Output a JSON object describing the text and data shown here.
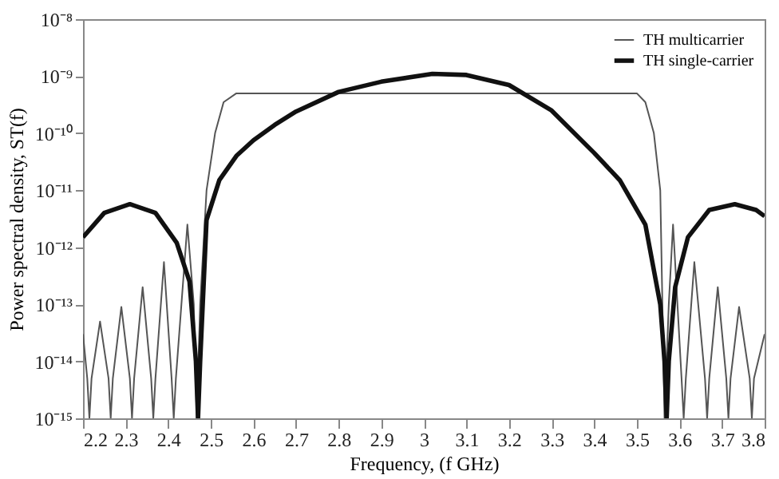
{
  "chart_data": {
    "type": "line",
    "xlabel": "Frequency, (f GHz)",
    "ylabel": "Power spectral density, ST(f)",
    "log": "y",
    "grid": false,
    "legend": "top right",
    "marker": "none",
    "line_style": "solid",
    "xlim": [
      2.2,
      3.8
    ],
    "xticks": [
      2.2,
      2.3,
      2.4,
      2.5,
      2.6,
      2.7,
      2.8,
      2.9,
      {
        "value": 3.0,
        "label": "3"
      },
      3.1,
      3.2,
      3.3,
      3.4,
      3.5,
      3.6,
      3.7,
      3.8
    ],
    "ylim": [
      1e-15,
      1e-08
    ],
    "yticks": [
      {
        "value": 1e-15,
        "label": "10⁻¹⁵"
      },
      {
        "value": 1e-14,
        "label": "10⁻¹⁴"
      },
      {
        "value": 1e-13,
        "label": "10⁻¹³"
      },
      {
        "value": 1e-12,
        "label": "10⁻¹²"
      },
      {
        "value": 1e-11,
        "label": "10⁻¹¹"
      },
      {
        "value": 1e-10,
        "label": "10⁻¹⁰"
      },
      {
        "value": 1e-09,
        "label": "10⁻⁹"
      },
      {
        "value": 1e-08,
        "label": "10⁻⁸"
      }
    ],
    "series": [
      {
        "name": "TH multicarrier",
        "color": "#555555",
        "x": [
          2.2,
          2.21,
          2.215,
          2.22,
          2.24,
          2.26,
          2.265,
          2.27,
          2.29,
          2.31,
          2.315,
          2.32,
          2.34,
          2.36,
          2.365,
          2.37,
          2.39,
          2.408,
          2.413,
          2.418,
          2.445,
          2.46,
          2.467,
          2.475,
          2.49,
          2.51,
          2.53,
          2.56,
          3.5,
          3.52,
          3.54,
          3.555,
          3.565,
          3.575,
          3.585,
          3.605,
          3.61,
          3.615,
          3.635,
          3.66,
          3.665,
          3.67,
          3.69,
          3.71,
          3.715,
          3.72,
          3.74,
          3.765,
          3.77,
          3.775,
          3.8
        ],
        "values": [
          3e-14,
          5e-15,
          1e-15,
          5e-15,
          5e-14,
          5e-15,
          1e-15,
          5e-15,
          9e-14,
          5e-15,
          1e-15,
          5e-15,
          2e-13,
          5e-15,
          1e-15,
          5e-15,
          5.5e-13,
          5e-15,
          1e-15,
          5e-15,
          2.5e-12,
          1e-13,
          1e-15,
          1e-13,
          1e-11,
          1e-10,
          3.5e-10,
          5e-10,
          5e-10,
          3.5e-10,
          1e-10,
          1e-11,
          1e-15,
          1e-13,
          2.5e-12,
          5e-15,
          1e-15,
          5e-15,
          5.5e-13,
          5e-15,
          1e-15,
          5e-15,
          2e-13,
          5e-15,
          1e-15,
          5e-15,
          9e-14,
          5e-15,
          1e-15,
          5e-15,
          3e-14
        ]
      },
      {
        "name": "TH single-carrier",
        "color": "#111111",
        "x": [
          2.2,
          2.25,
          2.31,
          2.37,
          2.42,
          2.45,
          2.465,
          2.47,
          2.475,
          2.49,
          2.52,
          2.56,
          2.6,
          2.65,
          2.7,
          2.8,
          2.9,
          3.02,
          3.1,
          3.2,
          3.3,
          3.4,
          3.46,
          3.52,
          3.555,
          3.565,
          3.57,
          3.575,
          3.59,
          3.62,
          3.67,
          3.73,
          3.78,
          3.8
        ],
        "values": [
          1.5e-12,
          4e-12,
          5.7e-12,
          4e-12,
          1.2e-12,
          2.5e-13,
          1e-14,
          1e-15,
          1e-14,
          3e-12,
          1.5e-11,
          4e-11,
          7.5e-11,
          1.4e-10,
          2.4e-10,
          5.3e-10,
          8e-10,
          1.1e-09,
          1.05e-09,
          7e-10,
          2.5e-10,
          4.5e-11,
          1.5e-11,
          2.5e-12,
          1e-13,
          1e-14,
          1e-15,
          1e-14,
          2e-13,
          1.5e-12,
          4.5e-12,
          5.7e-12,
          4.5e-12,
          3.5e-12
        ]
      }
    ]
  }
}
